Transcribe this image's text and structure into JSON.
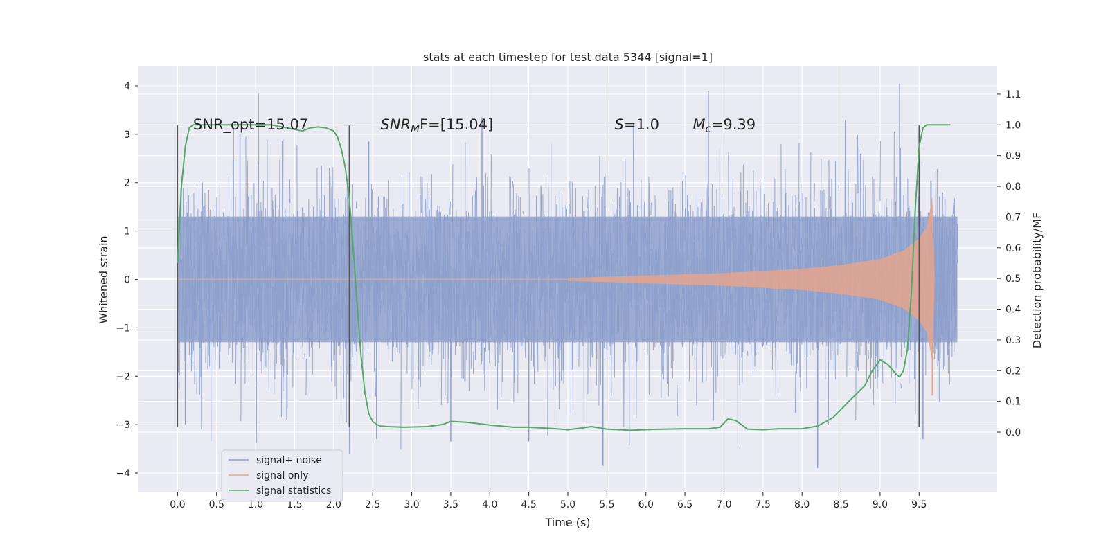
{
  "chart_data": {
    "type": "line",
    "title": "stats at each timestep for test data 5344 [signal=1]",
    "xlabel": "Time (s)",
    "ylabel": "Whitened strain",
    "y2label": "Detection probability/MF",
    "xlim": [
      -0.5,
      10.5
    ],
    "ylim": [
      -4.4,
      4.4
    ],
    "y2lim": [
      -0.196,
      1.19
    ],
    "x_ticks": [
      "0.0",
      "0.5",
      "1.0",
      "1.5",
      "2.0",
      "2.5",
      "3.0",
      "3.5",
      "4.0",
      "4.5",
      "5.0",
      "5.5",
      "6.0",
      "6.5",
      "7.0",
      "7.5",
      "8.0",
      "8.5",
      "9.0",
      "9.5"
    ],
    "y_ticks": [
      "4",
      "3",
      "2",
      "1",
      "0",
      "−1",
      "−2",
      "−3",
      "−4"
    ],
    "y2_ticks": [
      "1.1",
      "1.0",
      "0.9",
      "0.8",
      "0.7",
      "0.6",
      "0.5",
      "0.4",
      "0.3",
      "0.2",
      "0.1",
      "0.0"
    ],
    "grid": true,
    "legend_position": "bottom-left",
    "annotations": [
      {
        "name": "snr-opt",
        "text": "SNR_opt=15.07",
        "x": 0.2,
        "y": 3.1
      },
      {
        "name": "snr-mf",
        "main": "SNR",
        "sub": "M",
        "rest": "F=[15.04]",
        "x": 2.6,
        "y": 3.1
      },
      {
        "name": "s-value",
        "main": "S",
        "rest": "=1.0",
        "x": 5.6,
        "y": 3.1
      },
      {
        "name": "mc-value",
        "main": "M",
        "sub": "c",
        "rest": "=9.39",
        "x": 6.6,
        "y": 3.1
      }
    ],
    "vlines": [
      {
        "x": 0.0,
        "ymin": -3.05,
        "ymax": 3.18
      },
      {
        "x": 2.2,
        "ymin": -3.05,
        "ymax": 3.18
      },
      {
        "x": 9.5,
        "ymin": -3.05,
        "ymax": 3.18
      }
    ],
    "series": [
      {
        "name": "signal+ noise",
        "color": "#8da0cb",
        "x_range": [
          0.0,
          9.99
        ],
        "typical_amplitude": 1.0,
        "peak_values": [
          {
            "x": 0.1,
            "y": -3.0
          },
          {
            "x": 0.8,
            "y": 3.0
          },
          {
            "x": 1.4,
            "y": -2.9
          },
          {
            "x": 2.45,
            "y": 2.85
          },
          {
            "x": 2.55,
            "y": -3.3
          },
          {
            "x": 3.5,
            "y": -3.35
          },
          {
            "x": 3.9,
            "y": 3.35
          },
          {
            "x": 4.5,
            "y": -3.35
          },
          {
            "x": 5.45,
            "y": -3.85
          },
          {
            "x": 6.8,
            "y": 3.9
          },
          {
            "x": 8.2,
            "y": -3.9
          },
          {
            "x": 9.25,
            "y": 4.05
          },
          {
            "x": 9.55,
            "y": -3.3
          }
        ]
      },
      {
        "name": "signal only",
        "color": "#e5a48e",
        "x_range": [
          5.0,
          9.7
        ],
        "envelope_x": [
          5.0,
          6.0,
          7.0,
          8.0,
          8.5,
          9.0,
          9.3,
          9.5,
          9.6,
          9.67,
          9.7
        ],
        "envelope_y": [
          0.03,
          0.08,
          0.13,
          0.22,
          0.3,
          0.42,
          0.6,
          0.85,
          1.1,
          1.7,
          0.05
        ]
      },
      {
        "name": "signal statistics",
        "color": "#55a868",
        "axis": "right",
        "x": [
          0.0,
          0.05,
          0.1,
          0.15,
          0.2,
          0.3,
          0.5,
          0.8,
          1.0,
          1.2,
          1.4,
          1.6,
          1.7,
          1.8,
          1.9,
          2.0,
          2.05,
          2.1,
          2.15,
          2.2,
          2.25,
          2.3,
          2.35,
          2.4,
          2.45,
          2.5,
          2.55,
          2.6,
          2.7,
          2.9,
          3.2,
          3.4,
          3.5,
          3.7,
          4.0,
          4.3,
          4.5,
          4.8,
          5.0,
          5.2,
          5.3,
          5.5,
          5.8,
          6.1,
          6.5,
          6.8,
          6.95,
          7.05,
          7.15,
          7.3,
          7.5,
          7.7,
          8.0,
          8.2,
          8.4,
          8.6,
          8.8,
          8.9,
          9.0,
          9.1,
          9.2,
          9.25,
          9.3,
          9.35,
          9.4,
          9.45,
          9.5,
          9.55,
          9.6,
          9.7,
          9.9
        ],
        "y": [
          0.55,
          0.8,
          0.93,
          0.99,
          1.0,
          1.0,
          1.0,
          1.0,
          1.0,
          1.0,
          0.99,
          0.98,
          0.99,
          0.993,
          0.99,
          0.98,
          0.96,
          0.92,
          0.86,
          0.76,
          0.6,
          0.42,
          0.25,
          0.13,
          0.06,
          0.035,
          0.025,
          0.02,
          0.018,
          0.016,
          0.018,
          0.025,
          0.035,
          0.032,
          0.023,
          0.016,
          0.016,
          0.012,
          0.008,
          0.014,
          0.018,
          0.01,
          0.006,
          0.009,
          0.011,
          0.011,
          0.016,
          0.043,
          0.038,
          0.01,
          0.008,
          0.011,
          0.011,
          0.02,
          0.048,
          0.1,
          0.15,
          0.2,
          0.235,
          0.22,
          0.19,
          0.18,
          0.2,
          0.27,
          0.45,
          0.72,
          0.93,
          0.99,
          1.0,
          1.0,
          1.0
        ]
      }
    ]
  }
}
